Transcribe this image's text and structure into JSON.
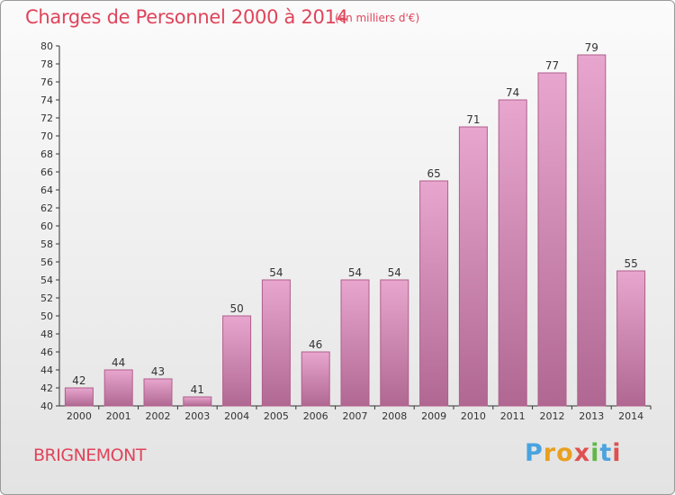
{
  "title": "Charges de Personnel 2000 à 2014",
  "subtitle": "(en milliers d'€)",
  "commune": "BRIGNEMONT",
  "brand": {
    "letters": [
      "P",
      "r",
      "o",
      "x",
      "i",
      "t",
      "i"
    ],
    "colors": [
      "#4aa3df",
      "#e8a020",
      "#e8a020",
      "#e05050",
      "#5fb84a",
      "#4aa3df",
      "#e05050"
    ]
  },
  "colors": {
    "bar_top": "#e8a6ce",
    "bar_bottom": "#b06892",
    "bar_stroke": "#b05e8a",
    "title": "#e0445a"
  },
  "chart_data": {
    "type": "bar",
    "categories": [
      "2000",
      "2001",
      "2002",
      "2003",
      "2004",
      "2005",
      "2006",
      "2007",
      "2008",
      "2009",
      "2010",
      "2011",
      "2012",
      "2013",
      "2014"
    ],
    "values": [
      42,
      44,
      43,
      41,
      50,
      54,
      46,
      54,
      54,
      65,
      71,
      74,
      77,
      79,
      55
    ],
    "ylim": [
      40,
      80
    ],
    "yticks": [
      40,
      42,
      44,
      46,
      48,
      50,
      52,
      54,
      56,
      58,
      60,
      62,
      64,
      66,
      68,
      70,
      72,
      74,
      76,
      78,
      80
    ],
    "grid": false,
    "legend": "none"
  }
}
